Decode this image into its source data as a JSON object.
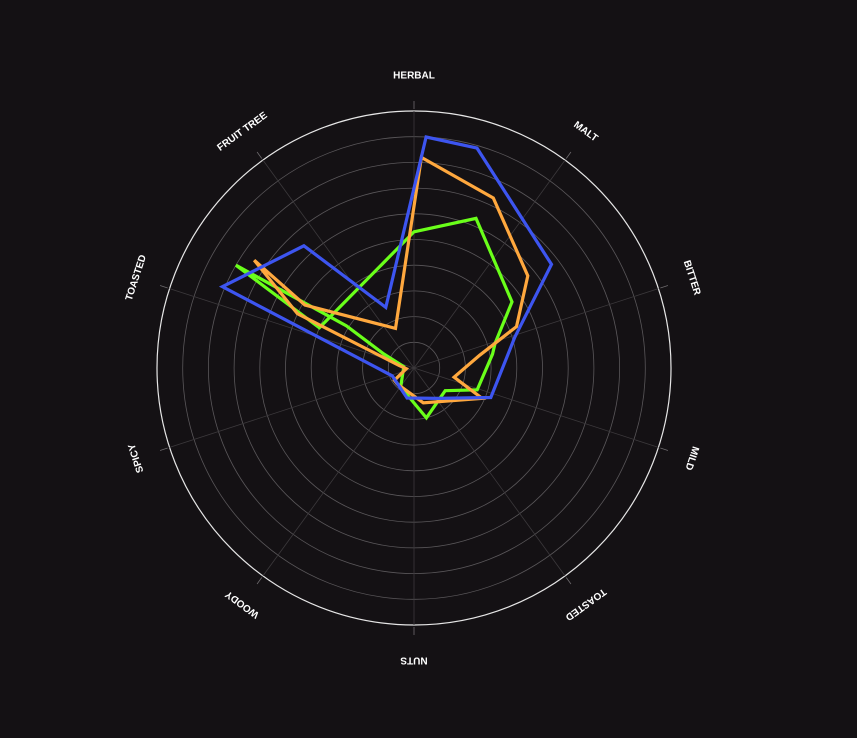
{
  "chart_data": {
    "type": "radar",
    "title": "",
    "axes": [
      {
        "label": "HERBAL"
      },
      {
        "label": "MALT"
      },
      {
        "label": "BITTER"
      },
      {
        "label": "MILD"
      },
      {
        "label": "TOASTED"
      },
      {
        "label": "NUTS"
      },
      {
        "label": "WOODY"
      },
      {
        "label": "SPICY"
      },
      {
        "label": "TOASTED"
      },
      {
        "label": "FRUIT TREE"
      }
    ],
    "range": [
      0,
      10
    ],
    "rings": 10,
    "grid": true,
    "legend": "none",
    "series": [
      {
        "color": "#6aff1a",
        "points": [
          {
            "angle": 0,
            "value": 5.3
          },
          {
            "angle": 22.5,
            "value": 6.3
          },
          {
            "angle": 56,
            "value": 4.6
          },
          {
            "angle": 73,
            "value": 3.3
          },
          {
            "angle": 80,
            "value": 3.1
          },
          {
            "angle": 109,
            "value": 2.6
          },
          {
            "angle": 126,
            "value": 1.5
          },
          {
            "angle": 166,
            "value": 2.0
          },
          {
            "angle": 215,
            "value": 0.9
          },
          {
            "angle": 277,
            "value": 0.4
          },
          {
            "angle": 295,
            "value": 1.3
          },
          {
            "angle": 302,
            "value": 3.1
          },
          {
            "angle": 300,
            "value": 8.0
          },
          {
            "angle": 293,
            "value": 4.0
          }
        ]
      },
      {
        "color": "#ffa83e",
        "points": [
          {
            "angle": 2,
            "value": 8.2
          },
          {
            "angle": 25,
            "value": 7.3
          },
          {
            "angle": 51,
            "value": 5.7
          },
          {
            "angle": 68,
            "value": 4.3
          },
          {
            "angle": 79,
            "value": 2.6
          },
          {
            "angle": 103,
            "value": 1.6
          },
          {
            "angle": 114,
            "value": 2.9
          },
          {
            "angle": 165,
            "value": 1.4
          },
          {
            "angle": 226,
            "value": 0.9
          },
          {
            "angle": 238,
            "value": 0.9
          },
          {
            "angle": 265,
            "value": 0.3
          },
          {
            "angle": 280,
            "value": 0.6
          },
          {
            "angle": 295,
            "value": 5.0
          },
          {
            "angle": 304,
            "value": 7.5
          },
          {
            "angle": 300,
            "value": 4.9
          },
          {
            "angle": 335,
            "value": 1.7
          }
        ]
      },
      {
        "color": "#3d55f0",
        "points": [
          {
            "angle": 3,
            "value": 9.0
          },
          {
            "angle": 16,
            "value": 8.9
          },
          {
            "angle": 53,
            "value": 6.7
          },
          {
            "angle": 73,
            "value": 4.1
          },
          {
            "angle": 111,
            "value": 3.2
          },
          {
            "angle": 142,
            "value": 1.5
          },
          {
            "angle": 193,
            "value": 1.2
          },
          {
            "angle": 250,
            "value": 0.9
          },
          {
            "angle": 293,
            "value": 8.1
          },
          {
            "angle": 318,
            "value": 6.4
          },
          {
            "angle": 335,
            "value": 2.6
          }
        ]
      }
    ]
  }
}
